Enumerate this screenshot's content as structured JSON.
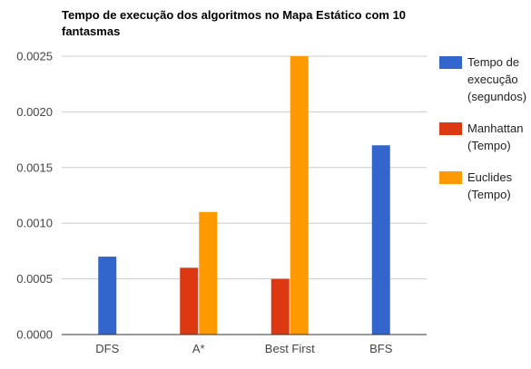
{
  "chart_data": {
    "type": "bar",
    "title_lines": [
      "Tempo de execução dos algoritmos no Mapa Estático com 10",
      "fantasmas"
    ],
    "categories": [
      "DFS",
      "A*",
      "Best First",
      "BFS"
    ],
    "series": [
      {
        "name_lines": [
          "Tempo de",
          "execução",
          "(segundos)"
        ],
        "color": "#3366cc",
        "values": [
          0.0007,
          null,
          null,
          0.0017
        ]
      },
      {
        "name_lines": [
          "Manhattan",
          "(Tempo)"
        ],
        "color": "#dc3912",
        "values": [
          null,
          0.0006,
          0.0005,
          null
        ]
      },
      {
        "name_lines": [
          "Euclides",
          "(Tempo)"
        ],
        "color": "#ff9900",
        "values": [
          null,
          0.0011,
          0.0025,
          null
        ]
      }
    ],
    "yticks": [
      "0.0000",
      "0.0005",
      "0.0010",
      "0.0015",
      "0.0020",
      "0.0025"
    ],
    "ylim": [
      0,
      0.0025
    ],
    "grid": true,
    "legend_position": "right"
  }
}
